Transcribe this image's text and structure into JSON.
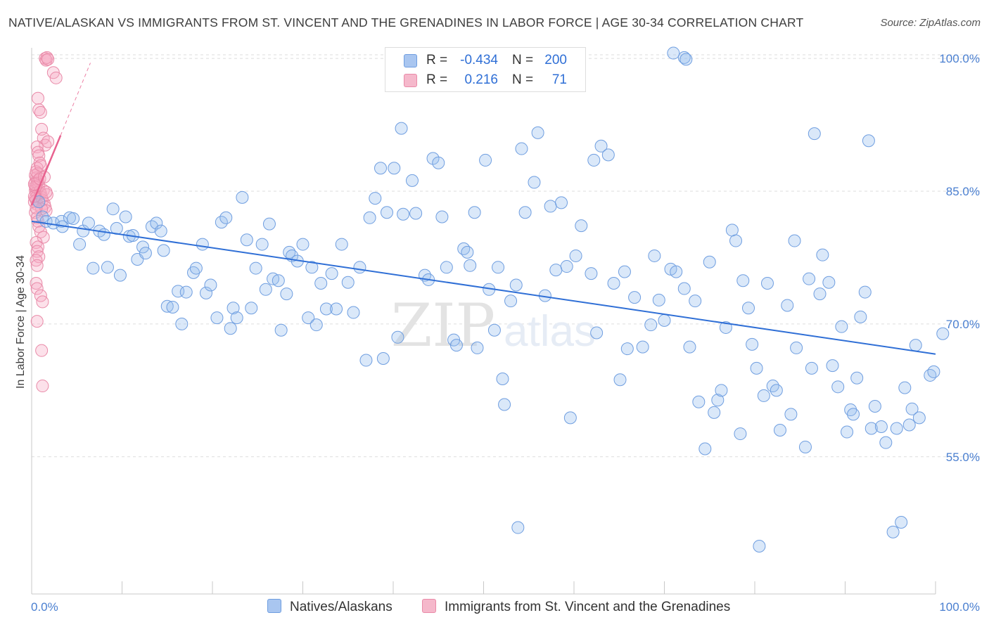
{
  "title": "NATIVE/ALASKAN VS IMMIGRANTS FROM ST. VINCENT AND THE GRENADINES IN LABOR FORCE | AGE 30-34 CORRELATION CHART",
  "source": "Source: ZipAtlas.com",
  "watermark": {
    "zip": "ZIP",
    "atlas": "atlas"
  },
  "legend": {
    "r_label": "R =",
    "n_label": "N =",
    "series": [
      {
        "name": "Natives/Alaskans",
        "r": "-0.434",
        "n": "200",
        "fill": "#a9c6f0",
        "stroke": "#6f9ee0"
      },
      {
        "name": "Immigrants from St. Vincent and the Grenadines",
        "r": "0.216",
        "n": "71",
        "fill": "#f5b8cb",
        "stroke": "#e98aa8"
      }
    ]
  },
  "colors": {
    "blue_point_fill": "rgba(150,188,238,0.35)",
    "blue_point_stroke": "#6f9ee0",
    "blue_line": "#2f6fd6",
    "pink_point_fill": "rgba(245,170,195,0.35)",
    "pink_point_stroke": "#e98aa8",
    "pink_line": "#e8628f",
    "grid": "#dddddd",
    "tick_text": "#4a7fd0"
  },
  "chart_data": {
    "type": "scatter",
    "title": "NATIVE/ALASKAN VS IMMIGRANTS FROM ST. VINCENT AND THE GRENADINES IN LABOR FORCE | AGE 30-34 CORRELATION CHART",
    "xlabel": "",
    "ylabel": "In Labor Force | Age 30-34",
    "xlim": [
      0,
      100
    ],
    "ylim": [
      39.5,
      101.2
    ],
    "x_tick_labels": [
      {
        "value": 0,
        "label": "0.0%"
      },
      {
        "value": 100,
        "label": "100.0%"
      }
    ],
    "x_minor_ticks": [
      0,
      10,
      20,
      30,
      40,
      50,
      60,
      70,
      80,
      90,
      100
    ],
    "y_ticks": [
      {
        "value": 55,
        "label": "55.0%"
      },
      {
        "value": 70,
        "label": "70.0%"
      },
      {
        "value": 85,
        "label": "85.0%"
      },
      {
        "value": 100,
        "label": "100.0%"
      }
    ],
    "grid": true,
    "legend_position": "top-center",
    "series": [
      {
        "name": "Natives/Alaskans",
        "r": -0.434,
        "n": 200,
        "trendline": {
          "x": [
            0,
            100
          ],
          "y": [
            81.6,
            66.6
          ]
        },
        "points": [
          [
            0.8,
            83.8
          ],
          [
            1.2,
            82.1
          ],
          [
            1.6,
            81.6
          ],
          [
            2.4,
            81.4
          ],
          [
            3.3,
            81.6
          ],
          [
            3.4,
            81.0
          ],
          [
            4.2,
            82.0
          ],
          [
            4.6,
            81.9
          ],
          [
            5.3,
            79.0
          ],
          [
            5.7,
            80.5
          ],
          [
            6.3,
            81.4
          ],
          [
            6.8,
            76.3
          ],
          [
            7.5,
            80.5
          ],
          [
            8.0,
            80.1
          ],
          [
            8.4,
            76.4
          ],
          [
            9.0,
            83.0
          ],
          [
            9.4,
            80.8
          ],
          [
            9.8,
            75.5
          ],
          [
            10.4,
            82.1
          ],
          [
            10.8,
            79.9
          ],
          [
            11.2,
            80.0
          ],
          [
            11.7,
            77.3
          ],
          [
            12.3,
            78.7
          ],
          [
            12.6,
            78.0
          ],
          [
            13.3,
            81.0
          ],
          [
            13.8,
            81.4
          ],
          [
            14.3,
            80.5
          ],
          [
            14.6,
            78.3
          ],
          [
            15.0,
            72.0
          ],
          [
            15.6,
            71.9
          ],
          [
            16.2,
            73.7
          ],
          [
            16.6,
            70.0
          ],
          [
            17.1,
            73.6
          ],
          [
            17.9,
            75.8
          ],
          [
            18.2,
            76.3
          ],
          [
            18.9,
            79.0
          ],
          [
            19.3,
            73.5
          ],
          [
            19.8,
            74.4
          ],
          [
            20.5,
            70.7
          ],
          [
            21.0,
            81.5
          ],
          [
            21.5,
            82.0
          ],
          [
            22.0,
            69.5
          ],
          [
            22.3,
            71.8
          ],
          [
            22.7,
            70.7
          ],
          [
            23.3,
            84.3
          ],
          [
            23.8,
            79.5
          ],
          [
            24.3,
            71.8
          ],
          [
            24.8,
            76.3
          ],
          [
            25.5,
            79.0
          ],
          [
            25.9,
            73.9
          ],
          [
            26.3,
            81.3
          ],
          [
            26.7,
            75.1
          ],
          [
            27.3,
            74.9
          ],
          [
            27.6,
            69.3
          ],
          [
            28.2,
            73.4
          ],
          [
            28.5,
            78.1
          ],
          [
            28.8,
            77.7
          ],
          [
            29.4,
            77.1
          ],
          [
            30.0,
            79.0
          ],
          [
            30.6,
            70.7
          ],
          [
            31.0,
            76.4
          ],
          [
            31.5,
            69.9
          ],
          [
            32.0,
            74.6
          ],
          [
            32.6,
            71.7
          ],
          [
            33.2,
            75.7
          ],
          [
            33.7,
            71.7
          ],
          [
            34.3,
            79.0
          ],
          [
            35.0,
            74.7
          ],
          [
            35.6,
            71.3
          ],
          [
            36.3,
            76.4
          ],
          [
            37.0,
            65.9
          ],
          [
            37.4,
            82.0
          ],
          [
            38.0,
            84.2
          ],
          [
            38.6,
            87.6
          ],
          [
            38.9,
            66.1
          ],
          [
            39.3,
            82.6
          ],
          [
            40.1,
            87.6
          ],
          [
            40.5,
            68.5
          ],
          [
            40.9,
            92.1
          ],
          [
            41.1,
            82.4
          ],
          [
            42.1,
            86.2
          ],
          [
            42.5,
            82.5
          ],
          [
            43.5,
            75.5
          ],
          [
            43.9,
            75.0
          ],
          [
            44.4,
            88.7
          ],
          [
            45.0,
            88.2
          ],
          [
            45.4,
            82.1
          ],
          [
            45.9,
            76.4
          ],
          [
            46.7,
            68.2
          ],
          [
            47.0,
            67.6
          ],
          [
            47.8,
            78.5
          ],
          [
            48.2,
            78.1
          ],
          [
            48.5,
            76.6
          ],
          [
            49.0,
            82.6
          ],
          [
            49.3,
            67.3
          ],
          [
            50.2,
            88.5
          ],
          [
            50.6,
            73.9
          ],
          [
            51.2,
            69.3
          ],
          [
            51.6,
            76.4
          ],
          [
            52.1,
            63.8
          ],
          [
            52.3,
            60.9
          ],
          [
            53.0,
            72.6
          ],
          [
            53.6,
            74.4
          ],
          [
            53.8,
            47.0
          ],
          [
            54.2,
            89.8
          ],
          [
            54.6,
            82.6
          ],
          [
            55.6,
            86.0
          ],
          [
            56.0,
            91.6
          ],
          [
            56.8,
            73.2
          ],
          [
            57.4,
            83.3
          ],
          [
            58.0,
            76.1
          ],
          [
            58.6,
            83.7
          ],
          [
            59.2,
            76.5
          ],
          [
            59.6,
            59.4
          ],
          [
            60.2,
            77.7
          ],
          [
            60.8,
            81.1
          ],
          [
            61.9,
            75.7
          ],
          [
            62.2,
            88.5
          ],
          [
            62.5,
            69.0
          ],
          [
            63.0,
            90.1
          ],
          [
            63.8,
            89.1
          ],
          [
            64.4,
            74.6
          ],
          [
            65.1,
            63.7
          ],
          [
            65.6,
            75.9
          ],
          [
            65.9,
            67.2
          ],
          [
            66.7,
            73.0
          ],
          [
            67.6,
            67.4
          ],
          [
            68.5,
            69.9
          ],
          [
            68.9,
            77.7
          ],
          [
            69.4,
            72.7
          ],
          [
            70.0,
            70.4
          ],
          [
            70.7,
            76.2
          ],
          [
            71.3,
            75.9
          ],
          [
            72.2,
            74.0
          ],
          [
            72.8,
            67.4
          ],
          [
            73.4,
            72.6
          ],
          [
            73.8,
            61.2
          ],
          [
            74.5,
            55.9
          ],
          [
            75.0,
            77.0
          ],
          [
            75.5,
            60.0
          ],
          [
            75.9,
            61.4
          ],
          [
            76.3,
            62.5
          ],
          [
            76.8,
            69.6
          ],
          [
            77.5,
            80.6
          ],
          [
            77.9,
            79.4
          ],
          [
            78.4,
            57.6
          ],
          [
            78.7,
            74.9
          ],
          [
            79.3,
            71.8
          ],
          [
            79.7,
            67.7
          ],
          [
            80.2,
            65.0
          ],
          [
            80.5,
            44.9
          ],
          [
            81.0,
            61.9
          ],
          [
            81.4,
            74.6
          ],
          [
            82.0,
            63.0
          ],
          [
            82.4,
            62.5
          ],
          [
            82.8,
            58.0
          ],
          [
            83.6,
            72.1
          ],
          [
            84.0,
            59.8
          ],
          [
            84.4,
            79.4
          ],
          [
            84.6,
            67.3
          ],
          [
            85.6,
            56.1
          ],
          [
            86.0,
            75.1
          ],
          [
            86.3,
            65.0
          ],
          [
            86.6,
            91.5
          ],
          [
            87.2,
            73.4
          ],
          [
            87.5,
            77.8
          ],
          [
            88.2,
            74.7
          ],
          [
            88.6,
            65.3
          ],
          [
            89.2,
            62.9
          ],
          [
            89.6,
            69.7
          ],
          [
            90.2,
            57.8
          ],
          [
            90.6,
            60.3
          ],
          [
            90.9,
            59.8
          ],
          [
            91.3,
            63.9
          ],
          [
            91.7,
            70.8
          ],
          [
            92.2,
            73.6
          ],
          [
            92.6,
            90.7
          ],
          [
            92.9,
            58.2
          ],
          [
            93.3,
            60.7
          ],
          [
            94.0,
            58.4
          ],
          [
            94.5,
            56.6
          ],
          [
            95.3,
            46.5
          ],
          [
            95.7,
            58.2
          ],
          [
            96.2,
            47.6
          ],
          [
            96.6,
            62.8
          ],
          [
            97.1,
            58.6
          ],
          [
            97.4,
            60.4
          ],
          [
            97.8,
            67.6
          ],
          [
            98.2,
            59.4
          ],
          [
            99.4,
            64.2
          ],
          [
            99.8,
            64.6
          ],
          [
            100.8,
            68.9
          ],
          [
            71.0,
            100.6
          ],
          [
            72.2,
            100.1
          ],
          [
            72.4,
            99.9
          ]
        ]
      },
      {
        "name": "Immigrants from St. Vincent and the Grenadines",
        "r": 0.216,
        "n": 71,
        "trendline": {
          "x": [
            0,
            3.2
          ],
          "y": [
            83.4,
            91.3
          ]
        },
        "trendline_extension": {
          "x": [
            3.2,
            6.5
          ],
          "y": [
            91.3,
            99.5
          ]
        },
        "points": [
          [
            1.5,
            100.0
          ],
          [
            1.6,
            99.8
          ],
          [
            1.7,
            100.1
          ],
          [
            1.8,
            99.9
          ],
          [
            2.4,
            98.4
          ],
          [
            2.7,
            97.8
          ],
          [
            0.7,
            95.5
          ],
          [
            0.8,
            94.2
          ],
          [
            1.0,
            93.9
          ],
          [
            1.1,
            92.0
          ],
          [
            1.3,
            91.0
          ],
          [
            1.5,
            90.2
          ],
          [
            1.8,
            90.6
          ],
          [
            0.6,
            90.0
          ],
          [
            0.7,
            89.4
          ],
          [
            0.8,
            89.0
          ],
          [
            0.9,
            88.2
          ],
          [
            0.6,
            87.6
          ],
          [
            0.7,
            87.0
          ],
          [
            0.5,
            86.5
          ],
          [
            0.4,
            86.0
          ],
          [
            0.6,
            85.9
          ],
          [
            0.5,
            85.4
          ],
          [
            0.4,
            85.1
          ],
          [
            0.5,
            84.8
          ],
          [
            0.6,
            84.5
          ],
          [
            0.4,
            84.2
          ],
          [
            0.5,
            84.0
          ],
          [
            0.3,
            83.8
          ],
          [
            0.6,
            83.5
          ],
          [
            0.7,
            86.2
          ],
          [
            0.8,
            85.7
          ],
          [
            0.9,
            85.0
          ],
          [
            1.0,
            84.7
          ],
          [
            1.1,
            84.3
          ],
          [
            1.2,
            84.0
          ],
          [
            1.3,
            85.1
          ],
          [
            1.4,
            83.6
          ],
          [
            1.5,
            83.2
          ],
          [
            1.6,
            82.8
          ],
          [
            1.7,
            84.6
          ],
          [
            1.1,
            83.0
          ],
          [
            0.4,
            82.6
          ],
          [
            0.6,
            82.0
          ],
          [
            0.7,
            81.6
          ],
          [
            0.8,
            81.0
          ],
          [
            1.0,
            80.4
          ],
          [
            1.3,
            79.8
          ],
          [
            0.5,
            79.2
          ],
          [
            0.7,
            78.7
          ],
          [
            0.6,
            78.2
          ],
          [
            0.8,
            77.6
          ],
          [
            0.5,
            77.2
          ],
          [
            0.6,
            76.6
          ],
          [
            0.5,
            74.6
          ],
          [
            0.6,
            74.0
          ],
          [
            1.0,
            73.2
          ],
          [
            1.2,
            72.5
          ],
          [
            0.6,
            70.3
          ],
          [
            1.1,
            67.0
          ],
          [
            1.2,
            63.0
          ],
          [
            0.4,
            86.8
          ],
          [
            0.5,
            87.2
          ],
          [
            0.4,
            85.5
          ],
          [
            0.3,
            84.4
          ],
          [
            0.3,
            85.8
          ],
          [
            0.5,
            83.1
          ],
          [
            0.9,
            86.4
          ],
          [
            1.0,
            87.9
          ],
          [
            1.4,
            86.6
          ],
          [
            1.6,
            84.9
          ]
        ]
      }
    ]
  }
}
